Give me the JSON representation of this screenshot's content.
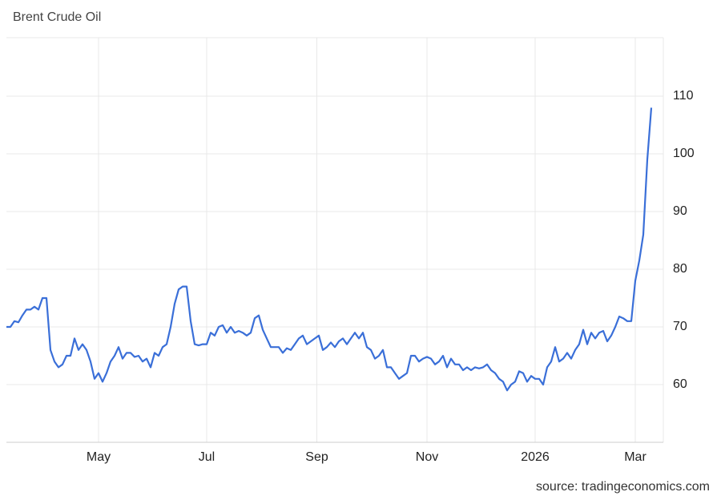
{
  "chart_data": {
    "type": "line",
    "title": "Brent Crude Oil",
    "source": "source: tradingeconomics.com",
    "color": "#3a6fd8",
    "values": [
      70,
      70,
      71,
      70.8,
      72,
      73,
      73,
      73.5,
      73,
      75,
      75,
      66,
      64,
      63,
      63.5,
      65,
      65,
      68,
      66,
      67,
      66,
      64,
      61,
      62,
      60.5,
      62,
      64,
      65,
      66.5,
      64.5,
      65.5,
      65.5,
      64.8,
      65,
      64,
      64.5,
      63,
      65.5,
      65,
      66.5,
      67,
      70,
      74,
      76.5,
      77,
      77,
      71,
      67,
      66.8,
      67,
      67,
      69,
      68.5,
      70,
      70.3,
      69,
      70,
      69,
      69.3,
      69,
      68.5,
      69,
      71.5,
      72,
      69.5,
      68,
      66.5,
      66.5,
      66.5,
      65.5,
      66.3,
      66,
      67,
      68,
      68.5,
      67,
      67.5,
      68,
      68.5,
      66,
      66.5,
      67.3,
      66.5,
      67.5,
      68,
      67,
      68,
      69,
      68,
      69,
      66.5,
      66,
      64.5,
      65,
      66,
      63,
      63,
      62,
      61,
      61.5,
      62,
      65,
      65,
      64,
      64.5,
      64.8,
      64.5,
      63.5,
      64,
      65,
      63,
      64.5,
      63.5,
      63.5,
      62.5,
      63,
      62.5,
      63,
      62.8,
      63,
      63.5,
      62.5,
      62,
      61,
      60.5,
      59,
      60,
      60.5,
      62.3,
      62,
      60.5,
      61.5,
      61,
      61,
      60,
      63,
      64,
      66.5,
      64,
      64.5,
      65.5,
      64.5,
      66,
      67,
      69.5,
      67,
      69,
      68,
      69,
      69.3,
      67.5,
      68.5,
      70,
      71.8,
      71.5,
      71,
      71,
      78,
      81.5,
      86,
      99,
      108
    ],
    "xlim": [
      0,
      164
    ],
    "xticks": [
      {
        "value": 23,
        "label": "May"
      },
      {
        "value": 50,
        "label": "Jul"
      },
      {
        "value": 77.5,
        "label": "Sep"
      },
      {
        "value": 105,
        "label": "Nov"
      },
      {
        "value": 132,
        "label": "2026"
      },
      {
        "value": 157,
        "label": "Mar"
      }
    ],
    "ylim": [
      50,
      120
    ],
    "yticks": [
      60,
      70,
      80,
      90,
      100,
      110
    ],
    "grid": true
  }
}
